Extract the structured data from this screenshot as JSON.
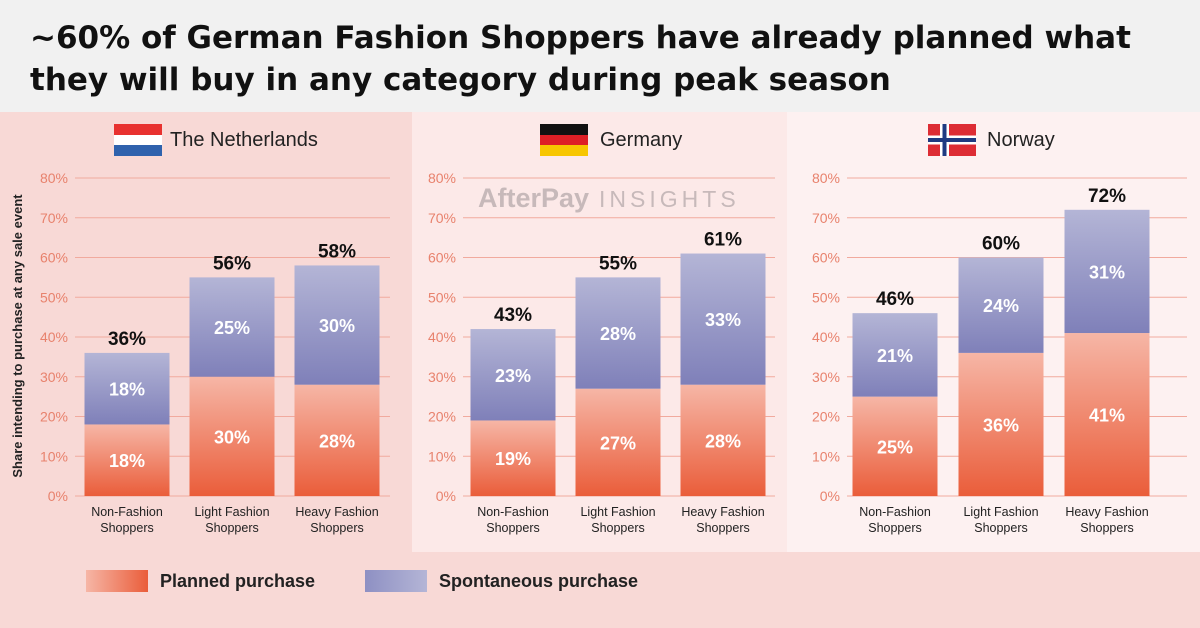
{
  "title": "~60% of German Fashion Shoppers have already planned what they will buy in any category during peak season",
  "watermark": {
    "brand": "AfterPay",
    "sub": "INSIGHTS"
  },
  "legend": [
    {
      "label": "Planned purchase",
      "icon": "planned-swatch-icon"
    },
    {
      "label": "Spontaneous purchase",
      "icon": "spontaneous-swatch-icon"
    }
  ],
  "colors": {
    "planned_top": "#f6b6a6",
    "planned_bottom": "#ea5d3a",
    "spontaneous_top": "#b4b5d6",
    "spontaneous_bottom": "#7f80b9",
    "axis_text": "#e8826d",
    "gridline": "#f1aa9e"
  },
  "chart_data": [
    {
      "type": "bar",
      "stacked": true,
      "country": "The Netherlands",
      "flag": "netherlands-flag-icon",
      "categories": [
        "Non-Fashion Shoppers",
        "Light Fashion Shoppers",
        "Heavy Fashion Shoppers"
      ],
      "category_lines": [
        [
          "Non-Fashion",
          "Shoppers"
        ],
        [
          "Light Fashion",
          "Shoppers"
        ],
        [
          "Heavy Fashion",
          "Shoppers"
        ]
      ],
      "series": [
        {
          "name": "Planned purchase",
          "values": [
            18,
            30,
            28
          ]
        },
        {
          "name": "Spontaneous purchase",
          "values": [
            18,
            25,
            30
          ]
        }
      ],
      "totals": [
        36,
        56,
        58
      ],
      "ylabel": "Share intending to purchase at any sale event",
      "ylim": [
        0,
        80
      ],
      "yticks": [
        "0%",
        "10%",
        "20%",
        "30%",
        "40%",
        "50%",
        "60%",
        "70%",
        "80%"
      ],
      "grid": true
    },
    {
      "type": "bar",
      "stacked": true,
      "country": "Germany",
      "flag": "germany-flag-icon",
      "categories": [
        "Non-Fashion Shoppers",
        "Light Fashion Shoppers",
        "Heavy Fashion Shoppers"
      ],
      "category_lines": [
        [
          "Non-Fashion",
          "Shoppers"
        ],
        [
          "Light Fashion",
          "Shoppers"
        ],
        [
          "Heavy Fashion",
          "Shoppers"
        ]
      ],
      "series": [
        {
          "name": "Planned purchase",
          "values": [
            19,
            27,
            28
          ]
        },
        {
          "name": "Spontaneous purchase",
          "values": [
            23,
            28,
            33
          ]
        }
      ],
      "totals": [
        43,
        55,
        61
      ],
      "ylim": [
        0,
        80
      ],
      "yticks": [
        "0%",
        "10%",
        "20%",
        "30%",
        "40%",
        "50%",
        "60%",
        "70%",
        "80%"
      ],
      "grid": true
    },
    {
      "type": "bar",
      "stacked": true,
      "country": "Norway",
      "flag": "norway-flag-icon",
      "categories": [
        "Non-Fashion Shoppers",
        "Light Fashion Shoppers",
        "Heavy Fashion Shoppers"
      ],
      "category_lines": [
        [
          "Non-Fashion",
          "Shoppers"
        ],
        [
          "Light Fashion",
          "Shoppers"
        ],
        [
          "Heavy Fashion",
          "Shoppers"
        ]
      ],
      "series": [
        {
          "name": "Planned purchase",
          "values": [
            25,
            36,
            41
          ]
        },
        {
          "name": "Spontaneous purchase",
          "values": [
            21,
            24,
            31
          ]
        }
      ],
      "totals": [
        46,
        60,
        72
      ],
      "ylim": [
        0,
        80
      ],
      "yticks": [
        "0%",
        "10%",
        "20%",
        "30%",
        "40%",
        "50%",
        "60%",
        "70%",
        "80%"
      ],
      "grid": true
    }
  ]
}
